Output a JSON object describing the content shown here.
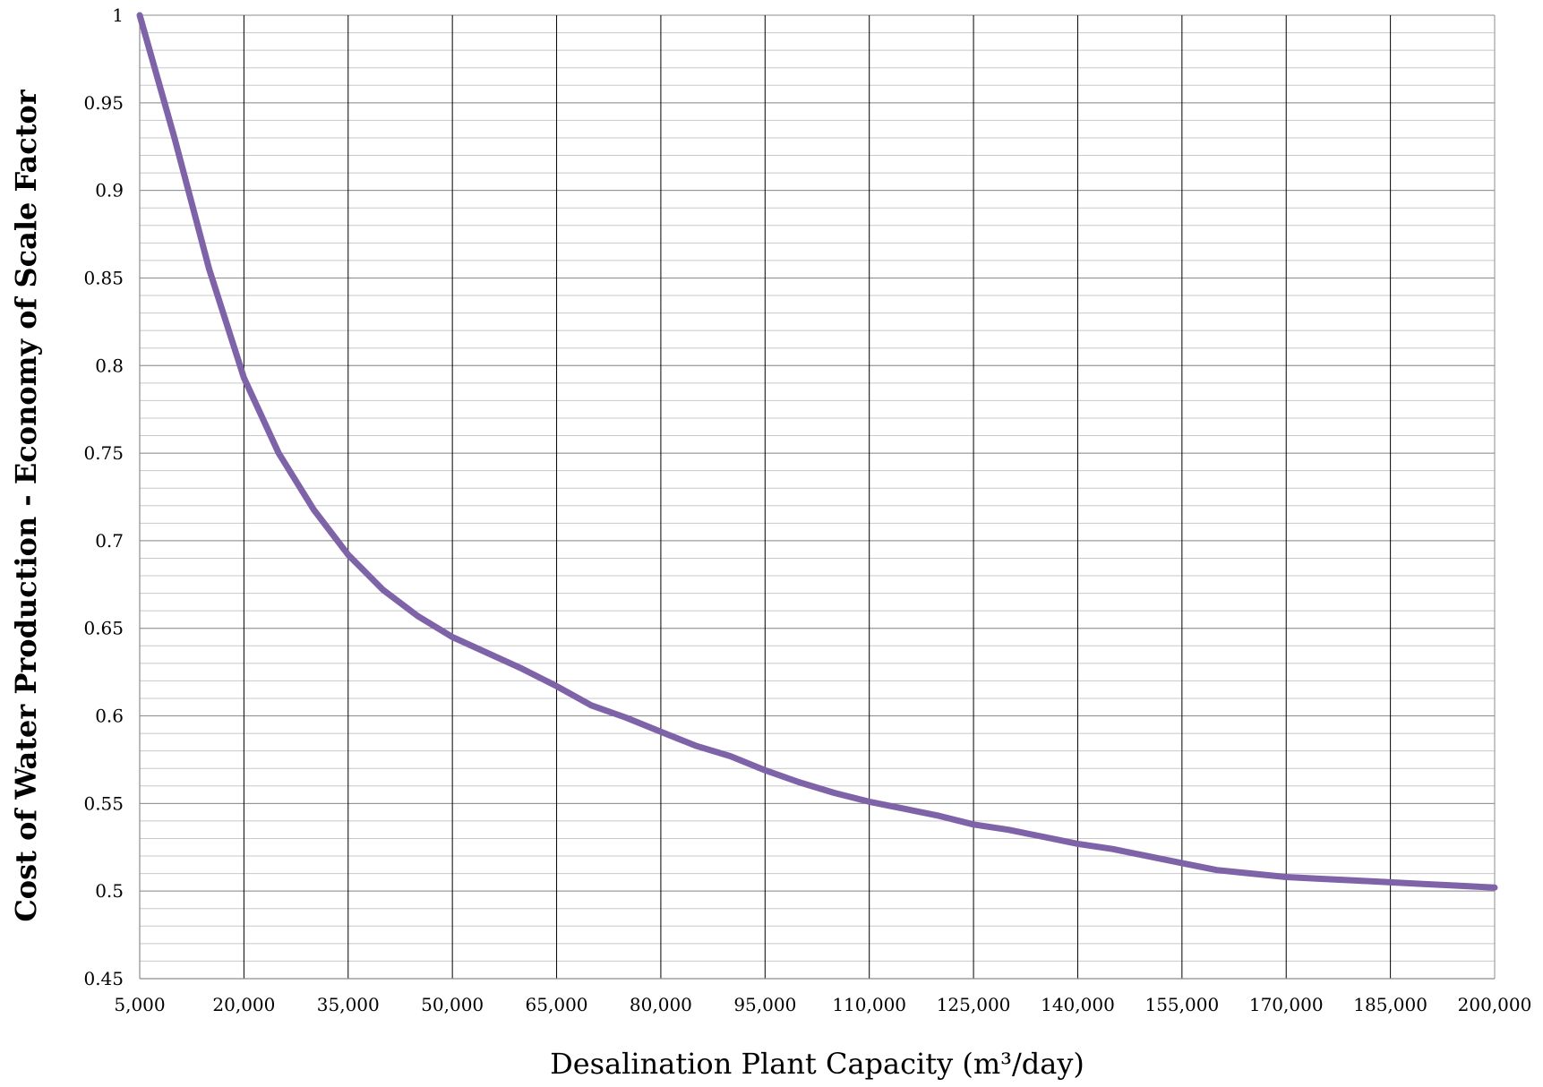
{
  "chart_data": {
    "type": "line",
    "title": "",
    "xlabel": "Desalination Plant Capacity (m³/day)",
    "ylabel": "Cost of Water Production - Economy of Scale Factor",
    "xlim": [
      5000,
      200000
    ],
    "ylim": [
      0.45,
      1
    ],
    "x_ticks": [
      5000,
      20000,
      35000,
      50000,
      65000,
      80000,
      95000,
      110000,
      125000,
      140000,
      155000,
      170000,
      185000,
      200000
    ],
    "x_tick_labels": [
      "5,000",
      "20,000",
      "35,000",
      "50,000",
      "65,000",
      "80,000",
      "95,000",
      "110,000",
      "125,000",
      "140,000",
      "155,000",
      "170,000",
      "185,000",
      "200,000"
    ],
    "y_ticks": [
      0.45,
      0.5,
      0.55,
      0.6,
      0.65,
      0.7,
      0.75,
      0.8,
      0.85,
      0.9,
      0.95,
      1
    ],
    "y_tick_labels": [
      "0.45",
      "0.5",
      "0.55",
      "0.6",
      "0.65",
      "0.7",
      "0.75",
      "0.8",
      "0.85",
      "0.9",
      "0.95",
      "1"
    ],
    "y_minor_step": 0.01,
    "grid": true,
    "legend": "none",
    "series": [
      {
        "color": "#7f63a8",
        "x": [
          5000,
          10000,
          15000,
          20000,
          25000,
          30000,
          35000,
          40000,
          45000,
          50000,
          55000,
          60000,
          65000,
          70000,
          75000,
          80000,
          85000,
          90000,
          95000,
          100000,
          105000,
          110000,
          115000,
          120000,
          125000,
          130000,
          135000,
          140000,
          145000,
          150000,
          155000,
          160000,
          165000,
          170000,
          175000,
          180000,
          185000,
          190000,
          195000,
          200000
        ],
        "y": [
          1.0,
          0.93,
          0.855,
          0.793,
          0.75,
          0.718,
          0.692,
          0.672,
          0.657,
          0.645,
          0.636,
          0.627,
          0.617,
          0.606,
          0.599,
          0.591,
          0.583,
          0.577,
          0.569,
          0.562,
          0.556,
          0.551,
          0.547,
          0.543,
          0.538,
          0.535,
          0.531,
          0.527,
          0.524,
          0.52,
          0.516,
          0.512,
          0.51,
          0.508,
          0.507,
          0.506,
          0.505,
          0.504,
          0.503,
          0.502
        ]
      }
    ]
  }
}
